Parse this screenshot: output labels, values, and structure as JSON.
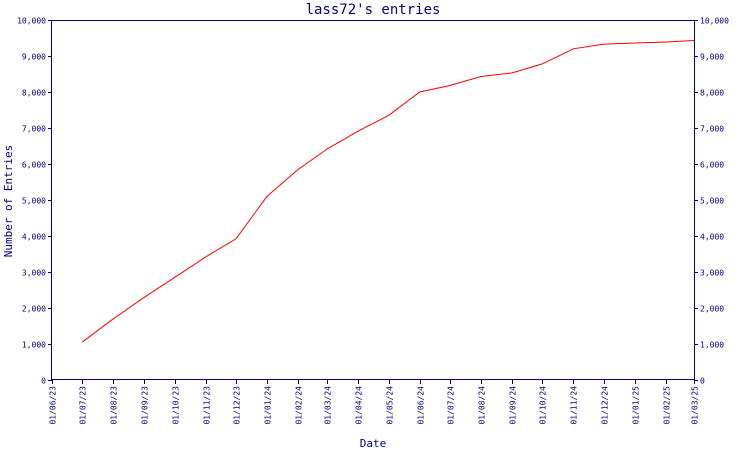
{
  "chart_data": {
    "type": "line",
    "title": "lass72's entries",
    "xlabel": "Date",
    "ylabel": "Number of Entries",
    "ylim": [
      0,
      10000
    ],
    "grid": false,
    "legend": "none",
    "line_color": "#ff0000",
    "axis_color": "#000080",
    "x_ticks": [
      "01/06/23",
      "01/07/23",
      "01/08/23",
      "01/09/23",
      "01/10/23",
      "01/11/23",
      "01/12/23",
      "01/01/24",
      "01/02/24",
      "01/03/24",
      "01/04/24",
      "01/05/24",
      "01/06/24",
      "01/07/24",
      "01/08/24",
      "01/09/24",
      "01/10/24",
      "01/11/24",
      "01/12/24",
      "01/01/25",
      "01/02/25",
      "01/03/25"
    ],
    "y_ticks": [
      "0",
      "1,000",
      "2,000",
      "3,000",
      "4,000",
      "5,000",
      "6,000",
      "7,000",
      "8,000",
      "9,000",
      "10,000"
    ],
    "series": [
      {
        "x": [
          "2023-07-01",
          "2023-08-01",
          "2023-09-01",
          "2023-10-01",
          "2023-11-01",
          "2023-12-01",
          "2024-01-01",
          "2024-02-01",
          "2024-03-01",
          "2024-04-01",
          "2024-05-01",
          "2024-06-01",
          "2024-07-01",
          "2024-08-01",
          "2024-09-01",
          "2024-10-01",
          "2024-11-01",
          "2024-12-01",
          "2025-01-01",
          "2025-02-01",
          "2025-03-01"
        ],
        "values": [
          1050,
          1700,
          2300,
          2850,
          3420,
          3920,
          5100,
          5850,
          6420,
          6920,
          7350,
          8000,
          8180,
          8430,
          8530,
          8780,
          9200,
          9330,
          9360,
          9390,
          9430
        ]
      }
    ]
  }
}
